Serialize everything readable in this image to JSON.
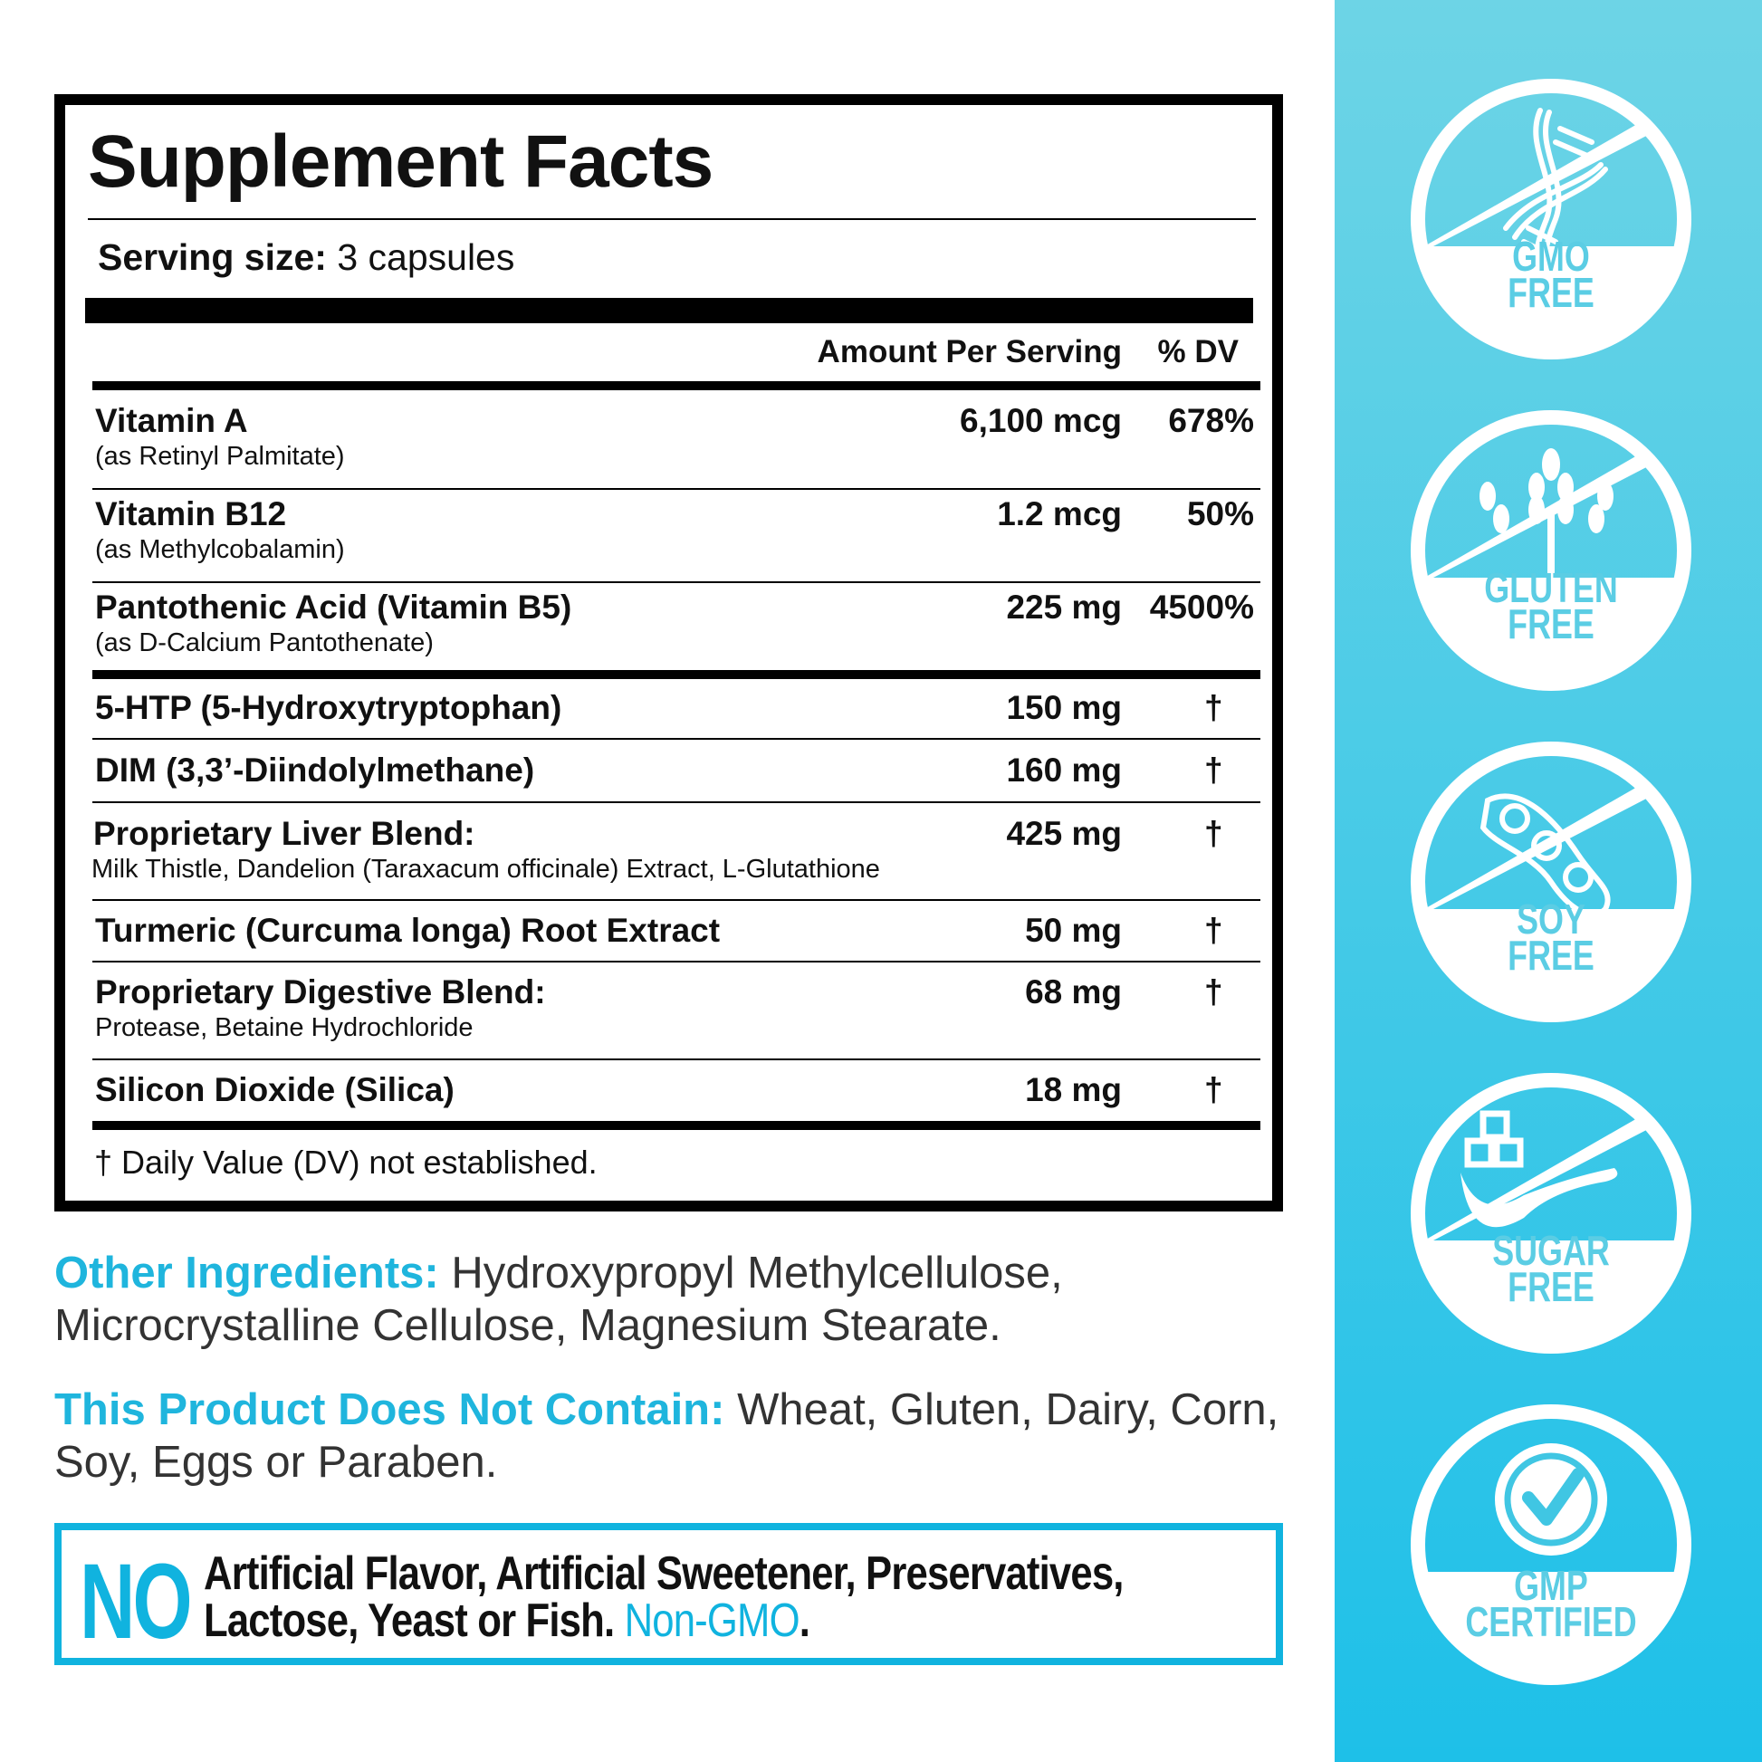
{
  "facts": {
    "title": "Supplement Facts",
    "serving_label": "Serving size:",
    "serving_value": "3 capsules",
    "col_amount": "Amount Per Serving",
    "col_dv": "% DV",
    "rows": [
      {
        "name": "Vitamin A",
        "sub": "(as Retinyl Palmitate)",
        "amount": "6,100 mcg",
        "dv": "678%"
      },
      {
        "name": "Vitamin B12",
        "sub": "(as Methylcobalamin)",
        "amount": "1.2 mcg",
        "dv": "50%"
      },
      {
        "name": "Pantothenic Acid (Vitamin B5)",
        "sub": "(as D-Calcium Pantothenate)",
        "amount": "225 mg",
        "dv": "4500%"
      },
      {
        "name": "5-HTP (5-Hydroxytryptophan)",
        "amount": "150 mg",
        "dv": "†"
      },
      {
        "name": "DIM (3,3’-Diindolylmethane)",
        "amount": "160 mg",
        "dv": "†"
      },
      {
        "name": "Proprietary Liver Blend:",
        "sub": "Milk Thistle, Dandelion (Taraxacum officinale) Extract, L-Glutathione",
        "amount": "425 mg",
        "dv": "†"
      },
      {
        "name": "Turmeric (Curcuma longa) Root Extract",
        "amount": "50 mg",
        "dv": "†"
      },
      {
        "name": "Proprietary Digestive Blend:",
        "sub": "Protease, Betaine Hydrochloride",
        "amount": "68 mg",
        "dv": "†"
      },
      {
        "name": "Silicon Dioxide (Silica)",
        "amount": "18 mg",
        "dv": "†"
      }
    ],
    "footnote": "† Daily Value (DV) not established."
  },
  "other_ingredients": {
    "label": "Other Ingredients:",
    "text": "Hydroxypropyl Methylcellulose, Microcrystalline Cellulose, Magnesium Stearate."
  },
  "does_not_contain": {
    "label": "This Product Does Not Contain:",
    "text": "Wheat, Gluten, Dairy, Corn, Soy, Eggs or Paraben."
  },
  "no_box": {
    "no": "NO",
    "line1": "Artificial Flavor, Artificial Sweetener, Preservatives,",
    "line2": "Lactose, Yeast or Fish.",
    "highlight": "Non-GMO",
    "end": "."
  },
  "badges": [
    {
      "line1": "GMO",
      "line2": "FREE",
      "icon": "dna-icon"
    },
    {
      "line1": "GLUTEN",
      "line2": "FREE",
      "icon": "wheat-icon"
    },
    {
      "line1": "SOY",
      "line2": "FREE",
      "icon": "soybean-icon"
    },
    {
      "line1": "SUGAR",
      "line2": "FREE",
      "icon": "sugar-spoon-icon"
    },
    {
      "line1": "GMP",
      "line2": "CERTIFIED",
      "icon": "check-seal-icon"
    }
  ],
  "colors": {
    "accent": "#10b3df",
    "panel_top": "#6dd4e6",
    "panel_bottom": "#1ec0e8"
  }
}
